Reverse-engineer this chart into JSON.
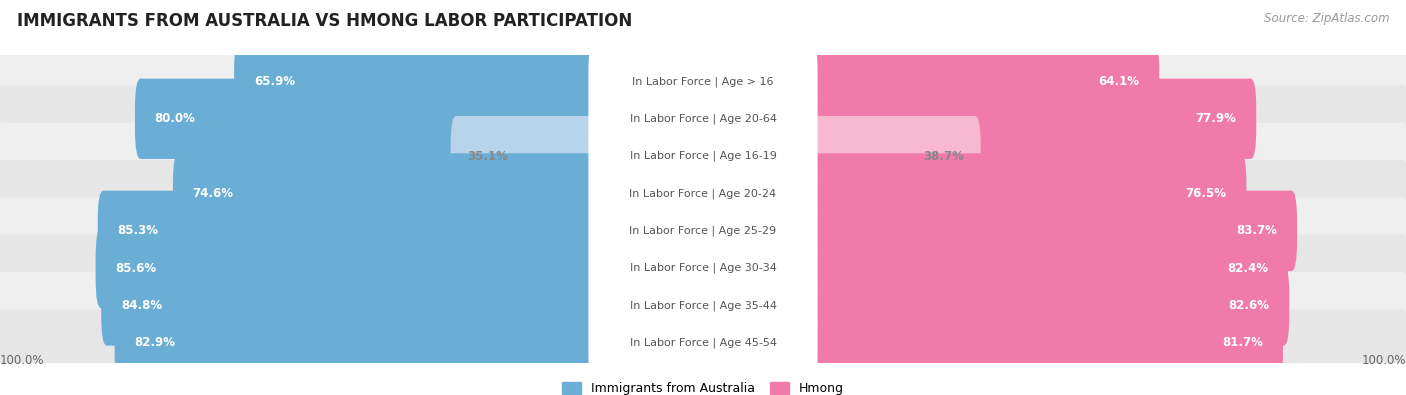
{
  "title": "IMMIGRANTS FROM AUSTRALIA VS HMONG LABOR PARTICIPATION",
  "source": "Source: ZipAtlas.com",
  "categories": [
    "In Labor Force | Age > 16",
    "In Labor Force | Age 20-64",
    "In Labor Force | Age 16-19",
    "In Labor Force | Age 20-24",
    "In Labor Force | Age 25-29",
    "In Labor Force | Age 30-34",
    "In Labor Force | Age 35-44",
    "In Labor Force | Age 45-54"
  ],
  "australia_values": [
    65.9,
    80.0,
    35.1,
    74.6,
    85.3,
    85.6,
    84.8,
    82.9
  ],
  "hmong_values": [
    64.1,
    77.9,
    38.7,
    76.5,
    83.7,
    82.4,
    82.6,
    81.7
  ],
  "australia_color": "#6aaed6",
  "australia_color_light": "#b8d4ea",
  "hmong_color": "#f07aaa",
  "hmong_color_light": "#f8b8d0",
  "row_bg_colors": [
    "#efefef",
    "#e6e6e6"
  ],
  "max_value": 100.0,
  "x_axis_left_label": "100.0%",
  "x_axis_right_label": "100.0%",
  "legend_australia": "Immigrants from Australia",
  "legend_hmong": "Hmong",
  "title_fontsize": 12,
  "source_fontsize": 8.5,
  "bar_label_fontsize": 8.5,
  "category_label_fontsize": 8,
  "axis_label_fontsize": 8.5,
  "legend_fontsize": 9
}
